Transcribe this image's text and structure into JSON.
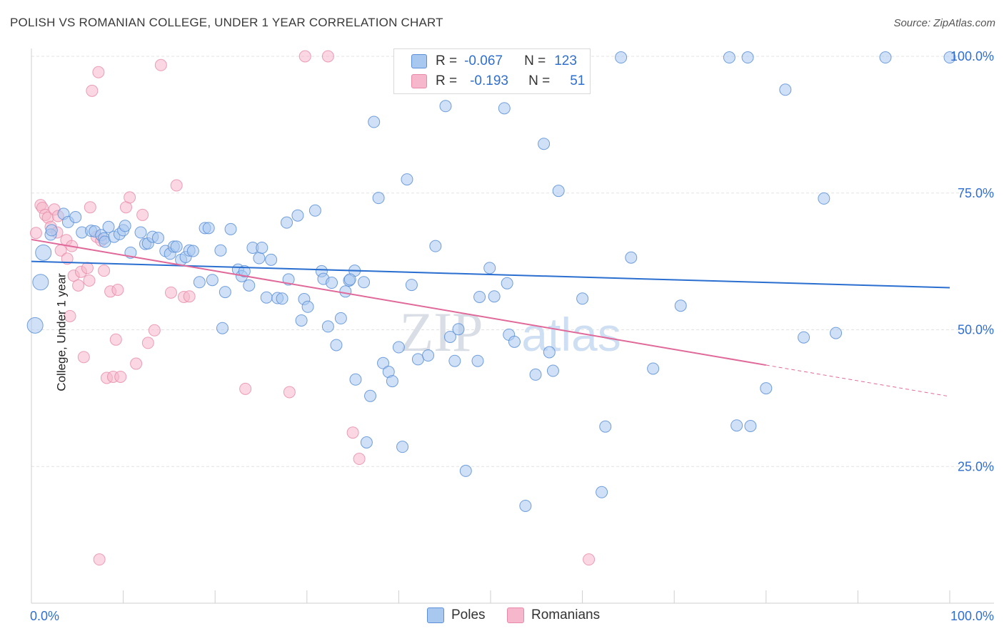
{
  "header": {
    "title": "POLISH VS ROMANIAN COLLEGE, UNDER 1 YEAR CORRELATION CHART",
    "source": "Source: ZipAtlas.com"
  },
  "legend": {
    "row1": {
      "r_label": "R =",
      "r_value": "-0.067",
      "n_label": "N =",
      "n_value": "123"
    },
    "row2": {
      "r_label": "R =",
      "r_value": "-0.193",
      "n_label": "N =",
      "n_value": "51"
    }
  },
  "bottom_legend": {
    "poles": "Poles",
    "romanians": "Romanians"
  },
  "watermark": {
    "zip": "ZIP",
    "atlas": "atlas"
  },
  "colors": {
    "poles_fill": "#a9c8f0",
    "poles_stroke": "#5b8fd6",
    "poles_line": "#2a6fd0",
    "romanians_fill": "#f6b6cb",
    "romanians_stroke": "#e78aa8",
    "romanians_line": "#e0699a",
    "grid": "#e3e3e3",
    "tick_label": "#2f6fcf"
  },
  "chart_data": {
    "type": "scatter",
    "title": "POLISH VS ROMANIAN COLLEGE, UNDER 1 YEAR CORRELATION CHART",
    "xlabel": "",
    "ylabel": "College, Under 1 year",
    "xlim": [
      0,
      100
    ],
    "ylim": [
      0,
      100
    ],
    "x_tick_labels": [
      "0.0%",
      "100.0%"
    ],
    "y_tick_labels": [
      "25.0%",
      "50.0%",
      "75.0%",
      "100.0%"
    ],
    "y_ticks": [
      25,
      50,
      75,
      100
    ],
    "grid": true,
    "legend_position": "top-center",
    "series": [
      {
        "name": "Poles",
        "R": -0.067,
        "N": 123,
        "trend": {
          "x": [
            0,
            100
          ],
          "y": [
            62.5,
            57.7
          ]
        },
        "points": [
          [
            1,
            58.7
          ],
          [
            0.4,
            50.8
          ],
          [
            1.3,
            64.1
          ],
          [
            2.1,
            67.4
          ],
          [
            2.2,
            68.2
          ],
          [
            3.5,
            71.2
          ],
          [
            4,
            69.7
          ],
          [
            4.8,
            70.6
          ],
          [
            5.5,
            67.8
          ],
          [
            6.5,
            68.1
          ],
          [
            6.9,
            68
          ],
          [
            7.6,
            67.3
          ],
          [
            7.9,
            66.7
          ],
          [
            8,
            66.1
          ],
          [
            8.4,
            68.8
          ],
          [
            9,
            67
          ],
          [
            9.6,
            67.5
          ],
          [
            10,
            68.2
          ],
          [
            10.2,
            69
          ],
          [
            10.8,
            64.1
          ],
          [
            11.9,
            67.8
          ],
          [
            12.4,
            65.7
          ],
          [
            12.7,
            65.8
          ],
          [
            13.2,
            67
          ],
          [
            13.8,
            66.8
          ],
          [
            14.6,
            64.4
          ],
          [
            15.1,
            63.9
          ],
          [
            15.5,
            65.2
          ],
          [
            15.8,
            65.2
          ],
          [
            16.3,
            62.8
          ],
          [
            16.8,
            63.3
          ],
          [
            17.2,
            64.5
          ],
          [
            17.6,
            64.4
          ],
          [
            18.3,
            58.7
          ],
          [
            18.9,
            68.6
          ],
          [
            19.3,
            68.6
          ],
          [
            19.7,
            59.1
          ],
          [
            20.6,
            64.5
          ],
          [
            20.8,
            50.3
          ],
          [
            21.1,
            56.9
          ],
          [
            21.7,
            68.4
          ],
          [
            22.5,
            61
          ],
          [
            22.9,
            59.8
          ],
          [
            23.2,
            60.7
          ],
          [
            23.7,
            58.1
          ],
          [
            24.1,
            65
          ],
          [
            24.8,
            63.1
          ],
          [
            25.1,
            65
          ],
          [
            25.6,
            55.9
          ],
          [
            26.1,
            62.8
          ],
          [
            26.8,
            55.8
          ],
          [
            27.3,
            55.7
          ],
          [
            27.8,
            69.6
          ],
          [
            28,
            59.2
          ],
          [
            29,
            70.9
          ],
          [
            29.4,
            51.7
          ],
          [
            29.7,
            55.6
          ],
          [
            30.1,
            54.2
          ],
          [
            30.9,
            71.8
          ],
          [
            31.6,
            60.7
          ],
          [
            31.8,
            59.3
          ],
          [
            32.3,
            50.6
          ],
          [
            32.7,
            58.6
          ],
          [
            33.2,
            47.2
          ],
          [
            33.7,
            52.1
          ],
          [
            34.2,
            57
          ],
          [
            34.6,
            59
          ],
          [
            35.2,
            60.8
          ],
          [
            35.3,
            40.9
          ],
          [
            36.2,
            58.7
          ],
          [
            36.5,
            29.4
          ],
          [
            36.9,
            37.9
          ],
          [
            37.3,
            88
          ],
          [
            37.8,
            74.1
          ],
          [
            38.3,
            43.9
          ],
          [
            38.9,
            42.3
          ],
          [
            39.3,
            40.6
          ],
          [
            40,
            46.8
          ],
          [
            40.4,
            28.6
          ],
          [
            40.9,
            77.5
          ],
          [
            41.4,
            58.2
          ],
          [
            42.1,
            44.6
          ],
          [
            43.2,
            45.3
          ],
          [
            44,
            65.3
          ],
          [
            45.1,
            90.9
          ],
          [
            45.6,
            48.7
          ],
          [
            46.1,
            44.3
          ],
          [
            46.5,
            50.1
          ],
          [
            47.3,
            24.2
          ],
          [
            48.6,
            44.3
          ],
          [
            48.8,
            56
          ],
          [
            49.9,
            61.3
          ],
          [
            50.4,
            56.1
          ],
          [
            51.5,
            90.5
          ],
          [
            51.8,
            58.5
          ],
          [
            52,
            49.1
          ],
          [
            52.6,
            47.8
          ],
          [
            53.8,
            17.8
          ],
          [
            54.9,
            41.8
          ],
          [
            55.8,
            84
          ],
          [
            56.4,
            45.9
          ],
          [
            56.8,
            42.5
          ],
          [
            57.4,
            75.4
          ],
          [
            58.3,
            99.8
          ],
          [
            60,
            55.7
          ],
          [
            62.1,
            20.3
          ],
          [
            62.5,
            32.3
          ],
          [
            64.2,
            99.8
          ],
          [
            65.3,
            63.2
          ],
          [
            67.7,
            42.9
          ],
          [
            70.7,
            54.4
          ],
          [
            76,
            99.8
          ],
          [
            76.8,
            32.5
          ],
          [
            78,
            99.8
          ],
          [
            78.3,
            32.4
          ],
          [
            80,
            39.3
          ],
          [
            82.1,
            93.9
          ],
          [
            84.1,
            48.6
          ],
          [
            86.3,
            74
          ],
          [
            87.6,
            49.4
          ],
          [
            93,
            99.8
          ],
          [
            100,
            99.8
          ],
          [
            34.7,
            59.2
          ]
        ]
      },
      {
        "name": "Romanians",
        "R": -0.193,
        "N": 51,
        "trend": {
          "x": [
            0,
            100
          ],
          "y": [
            66.5,
            37.8
          ],
          "solid_until_x": 80
        },
        "points": [
          [
            0.5,
            67.7
          ],
          [
            1,
            72.8
          ],
          [
            1.2,
            72.3
          ],
          [
            1.5,
            71
          ],
          [
            1.8,
            70.5
          ],
          [
            2.1,
            68.8
          ],
          [
            2.5,
            72
          ],
          [
            2.8,
            67.8
          ],
          [
            3.2,
            64.5
          ],
          [
            3.8,
            66.4
          ],
          [
            3.9,
            63
          ],
          [
            4.2,
            52.5
          ],
          [
            4.6,
            59.9
          ],
          [
            5.1,
            58.1
          ],
          [
            5.4,
            60.6
          ],
          [
            5.7,
            45
          ],
          [
            6.1,
            61.3
          ],
          [
            6.4,
            72.4
          ],
          [
            6.6,
            93.7
          ],
          [
            7.1,
            67
          ],
          [
            7.3,
            97.1
          ],
          [
            7.6,
            66.3
          ],
          [
            7.9,
            60.8
          ],
          [
            8.2,
            41.2
          ],
          [
            8.6,
            57
          ],
          [
            8.9,
            41.4
          ],
          [
            9.2,
            48.2
          ],
          [
            9.7,
            41.4
          ],
          [
            10.3,
            72.4
          ],
          [
            10.7,
            74.2
          ],
          [
            11.4,
            43.8
          ],
          [
            12.1,
            71
          ],
          [
            12.7,
            47.6
          ],
          [
            13.4,
            49.9
          ],
          [
            14.1,
            98.4
          ],
          [
            15.2,
            56.8
          ],
          [
            15.8,
            76.4
          ],
          [
            16.6,
            56
          ],
          [
            17.2,
            56.1
          ],
          [
            23.3,
            39.2
          ],
          [
            28.1,
            38.6
          ],
          [
            29.8,
            100
          ],
          [
            32.3,
            100
          ],
          [
            35,
            31.2
          ],
          [
            35.7,
            26.4
          ],
          [
            7.4,
            8
          ],
          [
            2.9,
            70.8
          ],
          [
            4.4,
            65.3
          ],
          [
            6.3,
            59
          ],
          [
            9.4,
            57.3
          ],
          [
            60.7,
            8
          ]
        ]
      }
    ]
  }
}
